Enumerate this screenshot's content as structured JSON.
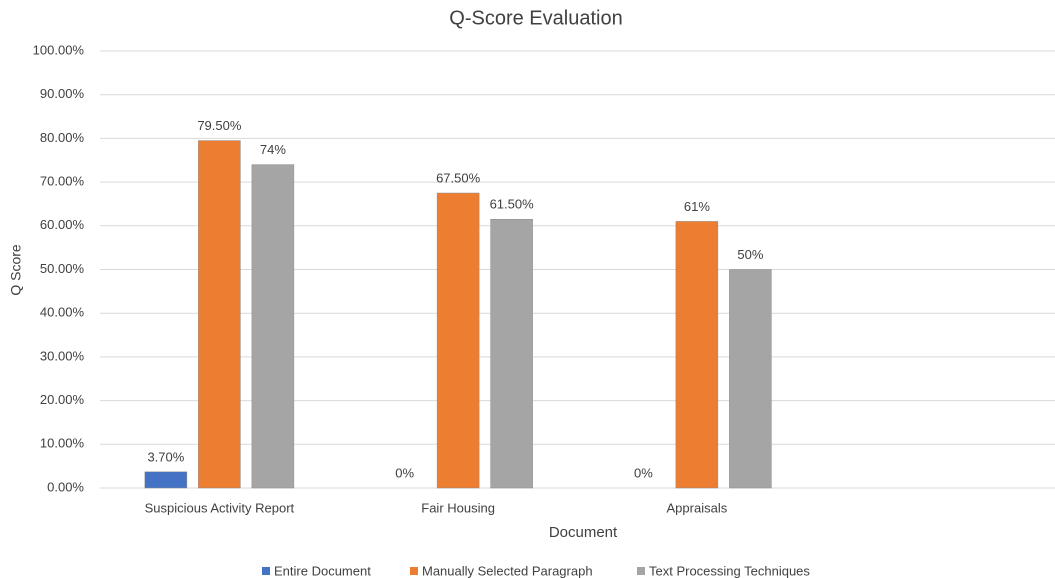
{
  "chart_data": {
    "type": "bar",
    "title": "Q-Score Evaluation",
    "x_label": "Document",
    "y_label": "Q Score",
    "categories": [
      "Suspicious Activity Report",
      "Fair Housing",
      "Appraisals",
      null
    ],
    "series": [
      {
        "name": "Entire Document",
        "color": "#4472c4",
        "values": [
          3.7,
          0,
          0,
          null
        ],
        "value_labels": [
          "3.70%",
          "0%",
          "0%",
          null
        ]
      },
      {
        "name": "Manually Selected Paragraph",
        "color": "#ed7d31",
        "values": [
          79.5,
          67.5,
          61,
          null
        ],
        "value_labels": [
          "79.50%",
          "67.50%",
          "61%",
          null
        ]
      },
      {
        "name": "Text Processing Techniques",
        "color": "#a5a5a5",
        "values": [
          74,
          61.5,
          50,
          null
        ],
        "value_labels": [
          "74%",
          "61.50%",
          "50%",
          null
        ]
      }
    ],
    "ylim": [
      0,
      100
    ],
    "yticks": [
      {
        "value": 0,
        "label": "0.00%"
      },
      {
        "value": 10,
        "label": "10.00%"
      },
      {
        "value": 20,
        "label": "20.00%"
      },
      {
        "value": 30,
        "label": "30.00%"
      },
      {
        "value": 40,
        "label": "40.00%"
      },
      {
        "value": 50,
        "label": "50.00%"
      },
      {
        "value": 60,
        "label": "60.00%"
      },
      {
        "value": 70,
        "label": "70.00%"
      },
      {
        "value": 80,
        "label": "80.00%"
      },
      {
        "value": 90,
        "label": "90.00%"
      },
      {
        "value": 100,
        "label": "100.00%"
      }
    ],
    "grid": true,
    "legend": "bottom"
  }
}
